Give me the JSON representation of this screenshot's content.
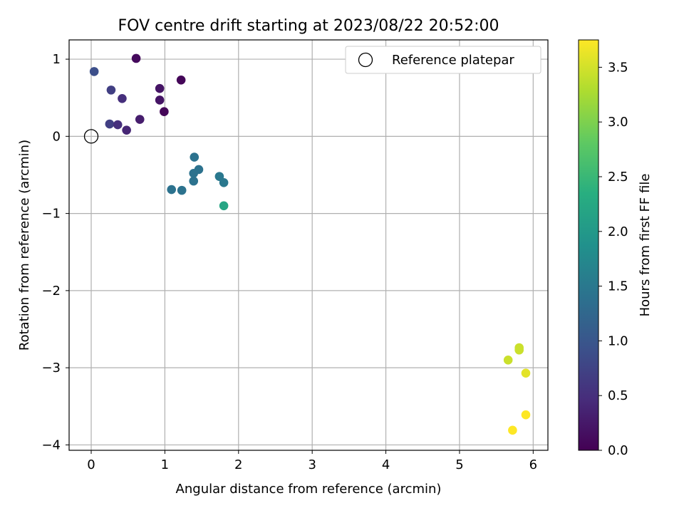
{
  "chart_data": {
    "type": "scatter",
    "title": "FOV centre drift starting at 2023/08/22 20:52:00",
    "xlabel": "Angular distance from reference (arcmin)",
    "ylabel": "Rotation from reference (arcmin)",
    "xlim": [
      -0.3,
      6.2
    ],
    "ylim": [
      -4.07,
      1.25
    ],
    "xticks": [
      0,
      1,
      2,
      3,
      4,
      5,
      6
    ],
    "yticks": [
      1,
      0,
      -1,
      -2,
      -3,
      -4
    ],
    "xtick_labels": [
      "0",
      "1",
      "2",
      "3",
      "4",
      "5",
      "6"
    ],
    "ytick_labels": [
      "1",
      "0",
      "−1",
      "−2",
      "−3",
      "−4"
    ],
    "grid": true,
    "legend": {
      "placement": "top-right",
      "label": "Reference platepar"
    },
    "reference_point": {
      "x": 0,
      "y": 0
    },
    "colorbar": {
      "label": "Hours from first FF file",
      "min": 0,
      "max": 3.75,
      "ticks": [
        0.0,
        0.5,
        1.0,
        1.5,
        2.0,
        2.5,
        3.0,
        3.5
      ],
      "tick_labels": [
        "0.0",
        "0.5",
        "1.0",
        "1.5",
        "2.0",
        "2.5",
        "3.0",
        "3.5"
      ],
      "colormap": "viridis"
    },
    "points": [
      {
        "x": 0.61,
        "y": 1.01,
        "c": 0.1
      },
      {
        "x": 0.04,
        "y": 0.84,
        "c": 0.9
      },
      {
        "x": 0.27,
        "y": 0.6,
        "c": 0.7
      },
      {
        "x": 0.42,
        "y": 0.49,
        "c": 0.5
      },
      {
        "x": 0.93,
        "y": 0.62,
        "c": 0.2
      },
      {
        "x": 0.93,
        "y": 0.47,
        "c": 0.2
      },
      {
        "x": 1.22,
        "y": 0.73,
        "c": 0.05
      },
      {
        "x": 0.99,
        "y": 0.32,
        "c": 0.05
      },
      {
        "x": 0.66,
        "y": 0.22,
        "c": 0.3
      },
      {
        "x": 0.25,
        "y": 0.16,
        "c": 0.7
      },
      {
        "x": 0.36,
        "y": 0.15,
        "c": 0.5
      },
      {
        "x": 0.48,
        "y": 0.08,
        "c": 0.4
      },
      {
        "x": 1.4,
        "y": -0.27,
        "c": 1.4
      },
      {
        "x": 1.46,
        "y": -0.43,
        "c": 1.4
      },
      {
        "x": 1.39,
        "y": -0.48,
        "c": 1.4
      },
      {
        "x": 1.39,
        "y": -0.58,
        "c": 1.4
      },
      {
        "x": 1.74,
        "y": -0.52,
        "c": 1.5
      },
      {
        "x": 1.8,
        "y": -0.6,
        "c": 1.5
      },
      {
        "x": 1.09,
        "y": -0.69,
        "c": 1.4
      },
      {
        "x": 1.23,
        "y": -0.7,
        "c": 1.4
      },
      {
        "x": 1.8,
        "y": -0.9,
        "c": 2.2
      },
      {
        "x": 5.81,
        "y": -2.74,
        "c": 3.45
      },
      {
        "x": 5.81,
        "y": -2.77,
        "c": 3.45
      },
      {
        "x": 5.66,
        "y": -2.9,
        "c": 3.45
      },
      {
        "x": 5.9,
        "y": -3.07,
        "c": 3.6
      },
      {
        "x": 5.9,
        "y": -3.61,
        "c": 3.75
      },
      {
        "x": 5.72,
        "y": -3.81,
        "c": 3.75
      }
    ]
  }
}
